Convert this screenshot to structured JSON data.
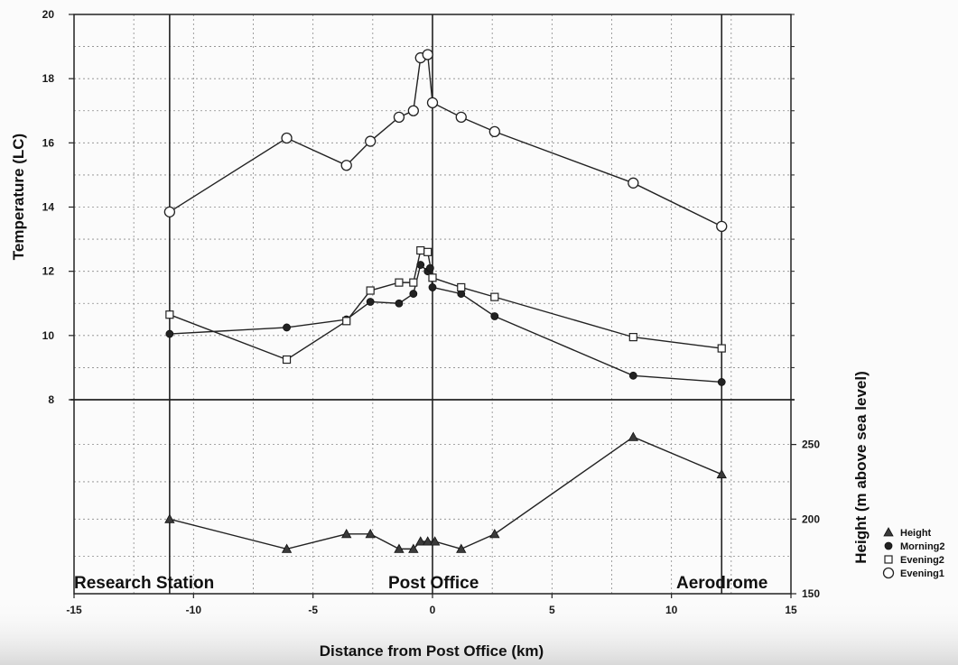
{
  "chart_data": {
    "type": "line",
    "xlabel": "Distance from Post Office (km)",
    "ylabel_left": "Temperature (LC)",
    "ylabel_right": "Height (m above sea level)",
    "xlim": [
      -15,
      15
    ],
    "x_ticks": [
      "-15",
      "-10",
      "-5",
      "0",
      "5",
      "10",
      "15"
    ],
    "ylim_temperature": [
      8,
      20
    ],
    "temperature_ticks": [
      "8",
      "10",
      "12",
      "14",
      "16",
      "18",
      "20"
    ],
    "ylim_height": [
      150,
      280
    ],
    "height_ticks": [
      "150",
      "200",
      "250"
    ],
    "grid": true,
    "legend_position": "right",
    "location_labels": [
      {
        "text": "Research Station",
        "x": -11
      },
      {
        "text": "Post Office",
        "x": 0
      },
      {
        "text": "Aerodrome",
        "x": 12.1
      }
    ],
    "series": [
      {
        "name": "Height",
        "marker": "triangle",
        "axis": "height",
        "x": [
          -11,
          -6.1,
          -3.6,
          -2.6,
          -1.4,
          -0.8,
          -0.5,
          -0.2,
          0.1,
          1.2,
          2.6,
          8.4,
          12.1
        ],
        "values": [
          200,
          180,
          190,
          190,
          180,
          180,
          185,
          185,
          185,
          180,
          190,
          255,
          230
        ]
      },
      {
        "name": "Morning2",
        "marker": "filled-circle",
        "axis": "temperature",
        "x": [
          -11,
          -6.1,
          -3.6,
          -2.6,
          -1.4,
          -0.8,
          -0.5,
          -0.2,
          -0.1,
          0,
          1.2,
          2.6,
          8.4,
          12.1
        ],
        "values": [
          10.05,
          10.25,
          10.5,
          11.05,
          11.0,
          11.3,
          12.2,
          12.0,
          12.1,
          11.5,
          11.3,
          10.6,
          8.75,
          8.55
        ]
      },
      {
        "name": "Evening2",
        "marker": "open-square",
        "axis": "temperature",
        "x": [
          -11,
          -6.1,
          -3.6,
          -2.6,
          -1.4,
          -0.8,
          -0.5,
          -0.2,
          0,
          1.2,
          2.6,
          8.4,
          12.1
        ],
        "values": [
          10.65,
          9.25,
          10.45,
          11.4,
          11.65,
          11.65,
          12.65,
          12.6,
          11.8,
          11.5,
          11.2,
          9.95,
          9.6
        ]
      },
      {
        "name": "Evening1",
        "marker": "open-circle",
        "axis": "temperature",
        "x": [
          -11,
          -6.1,
          -3.6,
          -2.6,
          -1.4,
          -0.8,
          -0.5,
          -0.2,
          0,
          1.2,
          2.6,
          8.4,
          12.1
        ],
        "values": [
          13.85,
          16.15,
          15.3,
          16.05,
          16.8,
          17.0,
          18.65,
          18.75,
          17.25,
          16.8,
          16.35,
          14.75,
          13.4
        ]
      }
    ]
  }
}
